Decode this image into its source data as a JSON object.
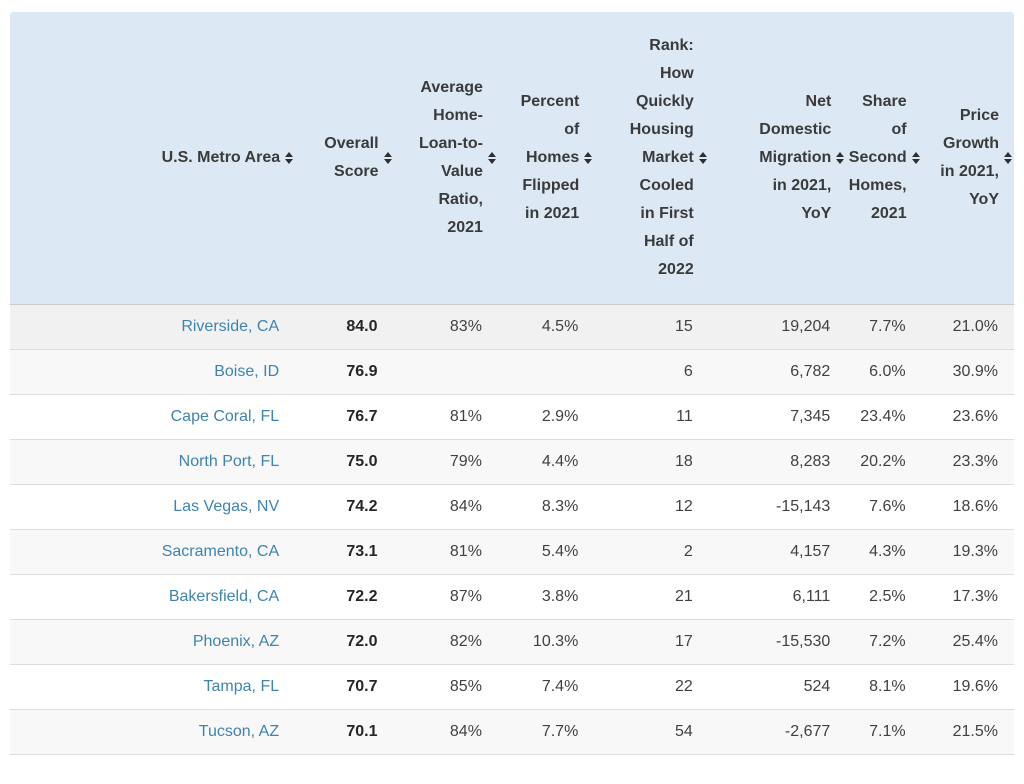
{
  "colors": {
    "header_background": "#dce9f5",
    "header_text": "#3a3a3a",
    "link_blue": "#3e84ae",
    "score_text": "#262626",
    "cell_text": "#414141",
    "row_stripe": "#f8f8f8",
    "row_highlight": "#f1f1f1",
    "row_divider": "#dddddd"
  },
  "icons": {
    "sort": {
      "name": "sort-icon",
      "glyph": "▲▼"
    }
  },
  "table": {
    "columns": [
      {
        "id": "metro",
        "label": "U.S. Metro Area",
        "sortable": true
      },
      {
        "id": "overall_score",
        "label": "Overall Score",
        "sortable": true
      },
      {
        "id": "avg_ltv",
        "label": "Average Home-Loan-to-Value Ratio, 2021",
        "sortable": true
      },
      {
        "id": "pct_flipped",
        "label": "Percent of Homes Flipped in 2021",
        "sortable": true
      },
      {
        "id": "cooling_rank",
        "label": "Rank: How Quickly Housing Market Cooled in First Half of 2022",
        "sortable": true
      },
      {
        "id": "net_migration",
        "label": "Net Domestic Migration in 2021, YoY",
        "sortable": true
      },
      {
        "id": "second_homes",
        "label": "Share of Second Homes, 2021",
        "sortable": true
      },
      {
        "id": "price_growth",
        "label": "Price Growth in 2021, YoY",
        "sortable": true
      }
    ],
    "rows": [
      {
        "metro": "Riverside, CA",
        "overall_score": "84.0",
        "avg_ltv": "83%",
        "pct_flipped": "4.5%",
        "cooling_rank": "15",
        "net_migration": "19,204",
        "second_homes": "7.7%",
        "price_growth": "21.0%"
      },
      {
        "metro": "Boise, ID",
        "overall_score": "76.9",
        "avg_ltv": "",
        "pct_flipped": "",
        "cooling_rank": "6",
        "net_migration": "6,782",
        "second_homes": "6.0%",
        "price_growth": "30.9%"
      },
      {
        "metro": "Cape Coral, FL",
        "overall_score": "76.7",
        "avg_ltv": "81%",
        "pct_flipped": "2.9%",
        "cooling_rank": "11",
        "net_migration": "7,345",
        "second_homes": "23.4%",
        "price_growth": "23.6%"
      },
      {
        "metro": "North Port, FL",
        "overall_score": "75.0",
        "avg_ltv": "79%",
        "pct_flipped": "4.4%",
        "cooling_rank": "18",
        "net_migration": "8,283",
        "second_homes": "20.2%",
        "price_growth": "23.3%"
      },
      {
        "metro": "Las Vegas, NV",
        "overall_score": "74.2",
        "avg_ltv": "84%",
        "pct_flipped": "8.3%",
        "cooling_rank": "12",
        "net_migration": "-15,143",
        "second_homes": "7.6%",
        "price_growth": "18.6%"
      },
      {
        "metro": "Sacramento, CA",
        "overall_score": "73.1",
        "avg_ltv": "81%",
        "pct_flipped": "5.4%",
        "cooling_rank": "2",
        "net_migration": "4,157",
        "second_homes": "4.3%",
        "price_growth": "19.3%"
      },
      {
        "metro": "Bakersfield, CA",
        "overall_score": "72.2",
        "avg_ltv": "87%",
        "pct_flipped": "3.8%",
        "cooling_rank": "21",
        "net_migration": "6,111",
        "second_homes": "2.5%",
        "price_growth": "17.3%"
      },
      {
        "metro": "Phoenix, AZ",
        "overall_score": "72.0",
        "avg_ltv": "82%",
        "pct_flipped": "10.3%",
        "cooling_rank": "17",
        "net_migration": "-15,530",
        "second_homes": "7.2%",
        "price_growth": "25.4%"
      },
      {
        "metro": "Tampa, FL",
        "overall_score": "70.7",
        "avg_ltv": "85%",
        "pct_flipped": "7.4%",
        "cooling_rank": "22",
        "net_migration": "524",
        "second_homes": "8.1%",
        "price_growth": "19.6%"
      },
      {
        "metro": "Tucson, AZ",
        "overall_score": "70.1",
        "avg_ltv": "84%",
        "pct_flipped": "7.7%",
        "cooling_rank": "54",
        "net_migration": "-2,677",
        "second_homes": "7.1%",
        "price_growth": "21.5%"
      }
    ]
  }
}
